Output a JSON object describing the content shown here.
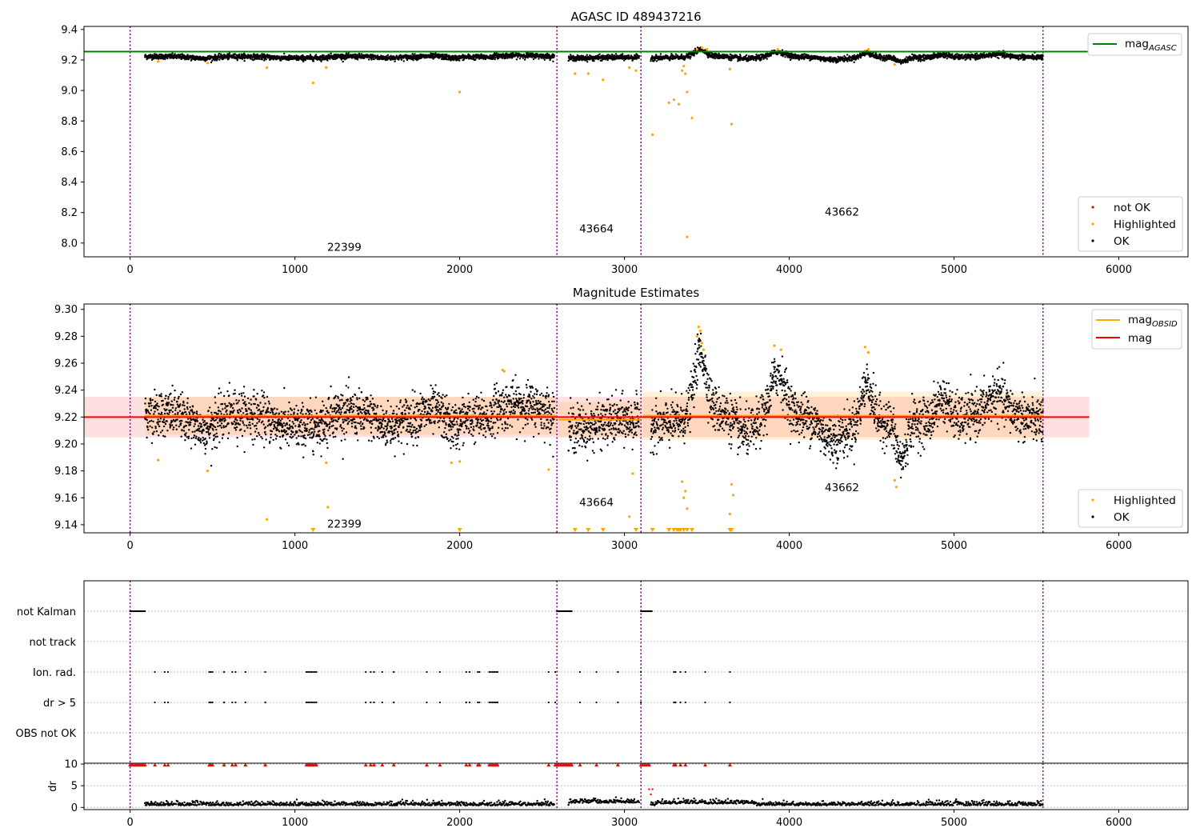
{
  "chart_data": [
    {
      "type": "scatter",
      "title": "AGASC ID 489437216",
      "xlim": [
        -280,
        6420
      ],
      "ylim": [
        7.91,
        9.42
      ],
      "xticks": [
        0,
        1000,
        2000,
        3000,
        4000,
        5000,
        6000
      ],
      "yticks": [
        8.0,
        8.2,
        8.4,
        8.6,
        8.8,
        9.0,
        9.2,
        9.4
      ],
      "mag_agasc": 9.255,
      "mag_line_x": [
        -280,
        5820
      ],
      "obs_boundaries": [
        0,
        2590,
        3100,
        5540
      ],
      "obsid_labels": [
        {
          "text": "22399",
          "x": 1300,
          "y": 7.95
        },
        {
          "text": "43664",
          "x": 2830,
          "y": 8.07
        },
        {
          "text": "43662",
          "x": 4320,
          "y": 8.18
        }
      ],
      "legend_line": {
        "label": "mag",
        "subscript": "AGASC",
        "color": "#008000"
      },
      "legend_points": [
        {
          "label": "not OK",
          "color": "#ff0000"
        },
        {
          "label": "Highlighted",
          "color": "#ffa500"
        },
        {
          "label": "OK",
          "color": "#000000"
        }
      ],
      "highlighted_points": [
        [
          170,
          9.19
        ],
        [
          470,
          9.18
        ],
        [
          830,
          9.15
        ],
        [
          1110,
          9.05
        ],
        [
          1190,
          9.15
        ],
        [
          2000,
          8.99
        ],
        [
          2700,
          9.11
        ],
        [
          2780,
          9.11
        ],
        [
          2870,
          9.07
        ],
        [
          3030,
          9.15
        ],
        [
          3070,
          9.13
        ],
        [
          3170,
          8.71
        ],
        [
          3270,
          8.92
        ],
        [
          3300,
          8.94
        ],
        [
          3330,
          8.91
        ],
        [
          3350,
          9.13
        ],
        [
          3360,
          9.16
        ],
        [
          3370,
          9.11
        ],
        [
          3380,
          8.99
        ],
        [
          3410,
          8.82
        ],
        [
          3380,
          8.04
        ],
        [
          3640,
          9.14
        ],
        [
          3650,
          8.78
        ],
        [
          3440,
          9.27
        ],
        [
          3470,
          9.28
        ],
        [
          3500,
          9.27
        ],
        [
          3930,
          9.27
        ],
        [
          4460,
          9.26
        ],
        [
          4480,
          9.27
        ],
        [
          4640,
          9.17
        ]
      ]
    },
    {
      "type": "scatter",
      "title": "Magnitude Estimates",
      "xlim": [
        -280,
        6420
      ],
      "ylim": [
        9.134,
        9.304
      ],
      "xticks": [
        0,
        1000,
        2000,
        3000,
        4000,
        5000,
        6000
      ],
      "yticks": [
        9.14,
        9.16,
        9.18,
        9.2,
        9.22,
        9.24,
        9.26,
        9.28,
        9.3
      ],
      "mag": 9.22,
      "mag_band": [
        9.205,
        9.235
      ],
      "mag_line_x": [
        -280,
        5820
      ],
      "mag_obsid_segments": [
        {
          "x": [
            90,
            2590
          ],
          "mag": 9.221,
          "band": [
            9.207,
            9.235
          ]
        },
        {
          "x": [
            2600,
            3100
          ],
          "mag": 9.218,
          "band": [
            9.205,
            9.231
          ]
        },
        {
          "x": [
            3110,
            5540
          ],
          "mag": 9.221,
          "band": [
            9.203,
            9.239
          ]
        }
      ],
      "obs_boundaries": [
        0,
        2590,
        3100,
        5540
      ],
      "obsid_labels": [
        {
          "text": "22399",
          "x": 1300,
          "y": 9.138
        },
        {
          "text": "43664",
          "x": 2830,
          "y": 9.154
        },
        {
          "text": "43662",
          "x": 4320,
          "y": 9.165
        }
      ],
      "legend_lines": [
        {
          "label": "mag",
          "subscript": "OBSID",
          "color": "#ffa500"
        },
        {
          "label": "mag",
          "subscript": "",
          "color": "#ff0000"
        }
      ],
      "legend_points": [
        {
          "label": "Highlighted",
          "color": "#ffa500"
        },
        {
          "label": "OK",
          "color": "#000000"
        }
      ],
      "highlighted_points": [
        [
          170,
          9.188
        ],
        [
          470,
          9.18
        ],
        [
          830,
          9.144
        ],
        [
          1190,
          9.186
        ],
        [
          1200,
          9.153
        ],
        [
          2000,
          9.187
        ],
        [
          1950,
          9.186
        ],
        [
          2260,
          9.255
        ],
        [
          2270,
          9.254
        ],
        [
          2540,
          9.181
        ],
        [
          3030,
          9.146
        ],
        [
          3050,
          9.178
        ],
        [
          3350,
          9.172
        ],
        [
          3360,
          9.16
        ],
        [
          3370,
          9.165
        ],
        [
          3380,
          9.152
        ],
        [
          3640,
          9.148
        ],
        [
          3650,
          9.17
        ],
        [
          3660,
          9.162
        ],
        [
          3440,
          9.28
        ],
        [
          3450,
          9.287
        ],
        [
          3460,
          9.284
        ],
        [
          3470,
          9.275
        ],
        [
          3480,
          9.27
        ],
        [
          3910,
          9.273
        ],
        [
          3950,
          9.27
        ],
        [
          4460,
          9.272
        ],
        [
          4480,
          9.268
        ],
        [
          4640,
          9.173
        ],
        [
          4650,
          9.168
        ]
      ],
      "clipped_markers": [
        1110,
        2000,
        2700,
        2780,
        2870,
        3070,
        3170,
        3270,
        3300,
        3320,
        3330,
        3340,
        3360,
        3380,
        3410,
        3640,
        3650
      ]
    },
    {
      "type": "scatter",
      "title": "",
      "xlim": [
        -280,
        6420
      ],
      "xticks": [
        0,
        1000,
        2000,
        3000,
        4000,
        5000,
        6000
      ],
      "categories": [
        "not Kalman",
        "not track",
        "Ion. rad.",
        "dr > 5",
        "OBS not OK"
      ],
      "obs_boundaries": [
        0,
        2590,
        3100,
        5540
      ],
      "not_kalman_ranges": [
        [
          0,
          90
        ],
        [
          2590,
          2680
        ],
        [
          3100,
          3170
        ]
      ],
      "flag_times": [
        150,
        210,
        230,
        480,
        490,
        500,
        570,
        620,
        640,
        700,
        820,
        1070,
        1080,
        1090,
        1100,
        1110,
        1120,
        1130,
        1430,
        1460,
        1480,
        1530,
        1600,
        1800,
        1880,
        2040,
        2060,
        2110,
        2120,
        2180,
        2190,
        2200,
        2210,
        2220,
        2230,
        2540,
        2580,
        2730,
        2830,
        2960,
        3100,
        3300,
        3310,
        3340,
        3370,
        3490,
        3640
      ]
    },
    {
      "type": "scatter",
      "title": "",
      "ylabel": "dr",
      "xlim": [
        -280,
        6420
      ],
      "ylim": [
        -0.5,
        10.2
      ],
      "xticks": [
        0,
        1000,
        2000,
        3000,
        4000,
        5000,
        6000
      ],
      "yticks": [
        0,
        5,
        10
      ],
      "obs_boundaries": [
        0,
        2590,
        3100,
        5540
      ],
      "clip_times": [
        0,
        10,
        20,
        30,
        40,
        50,
        60,
        70,
        80,
        90,
        150,
        210,
        230,
        480,
        490,
        500,
        570,
        620,
        640,
        700,
        820,
        1070,
        1080,
        1090,
        1100,
        1110,
        1120,
        1130,
        1430,
        1460,
        1480,
        1530,
        1600,
        1800,
        1880,
        2040,
        2060,
        2110,
        2120,
        2180,
        2190,
        2200,
        2210,
        2220,
        2230,
        2540,
        2580,
        2590,
        2600,
        2610,
        2620,
        2630,
        2640,
        2650,
        2660,
        2670,
        2680,
        2730,
        2830,
        2960,
        3100,
        3110,
        3120,
        3130,
        3140,
        3150,
        3300,
        3310,
        3340,
        3370,
        3490,
        3640
      ],
      "red_points": [
        [
          3150,
          4.2
        ],
        [
          3170,
          4.2
        ],
        [
          3160,
          3.0
        ]
      ]
    }
  ]
}
